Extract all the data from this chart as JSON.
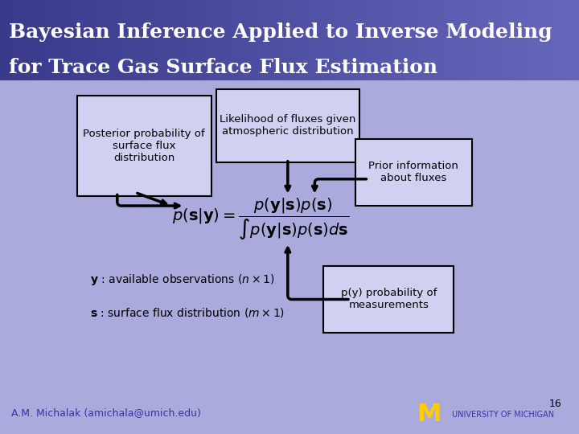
{
  "title_line1": "Bayesian Inference Applied to Inverse Modeling",
  "title_line2": "for Trace Gas Surface Flux Estimation",
  "title_bg_color_top": "#3a3a8c",
  "title_bg_color_bottom": "#8888cc",
  "main_bg_color": "#aaaadd",
  "box_face_color": "#d0d0f0",
  "box_edge_color": "#000000",
  "title_text_color": "#ffffff",
  "footer_text_color": "#3333aa",
  "footer_left": "A.M. Michalak (amichala@umich.edu)",
  "slide_number": "16",
  "posterior_box": "Posterior probability of\nsurface flux\ndistribution",
  "likelihood_box": "Likelihood of fluxes given\natmospheric distribution",
  "prior_box": "Prior information\nabout fluxes",
  "py_box": "p(y) probability of\nmeasurements",
  "obs_text1": "y : available observations (n×1)",
  "obs_text2": "s : surface flux distribution (m×1)"
}
